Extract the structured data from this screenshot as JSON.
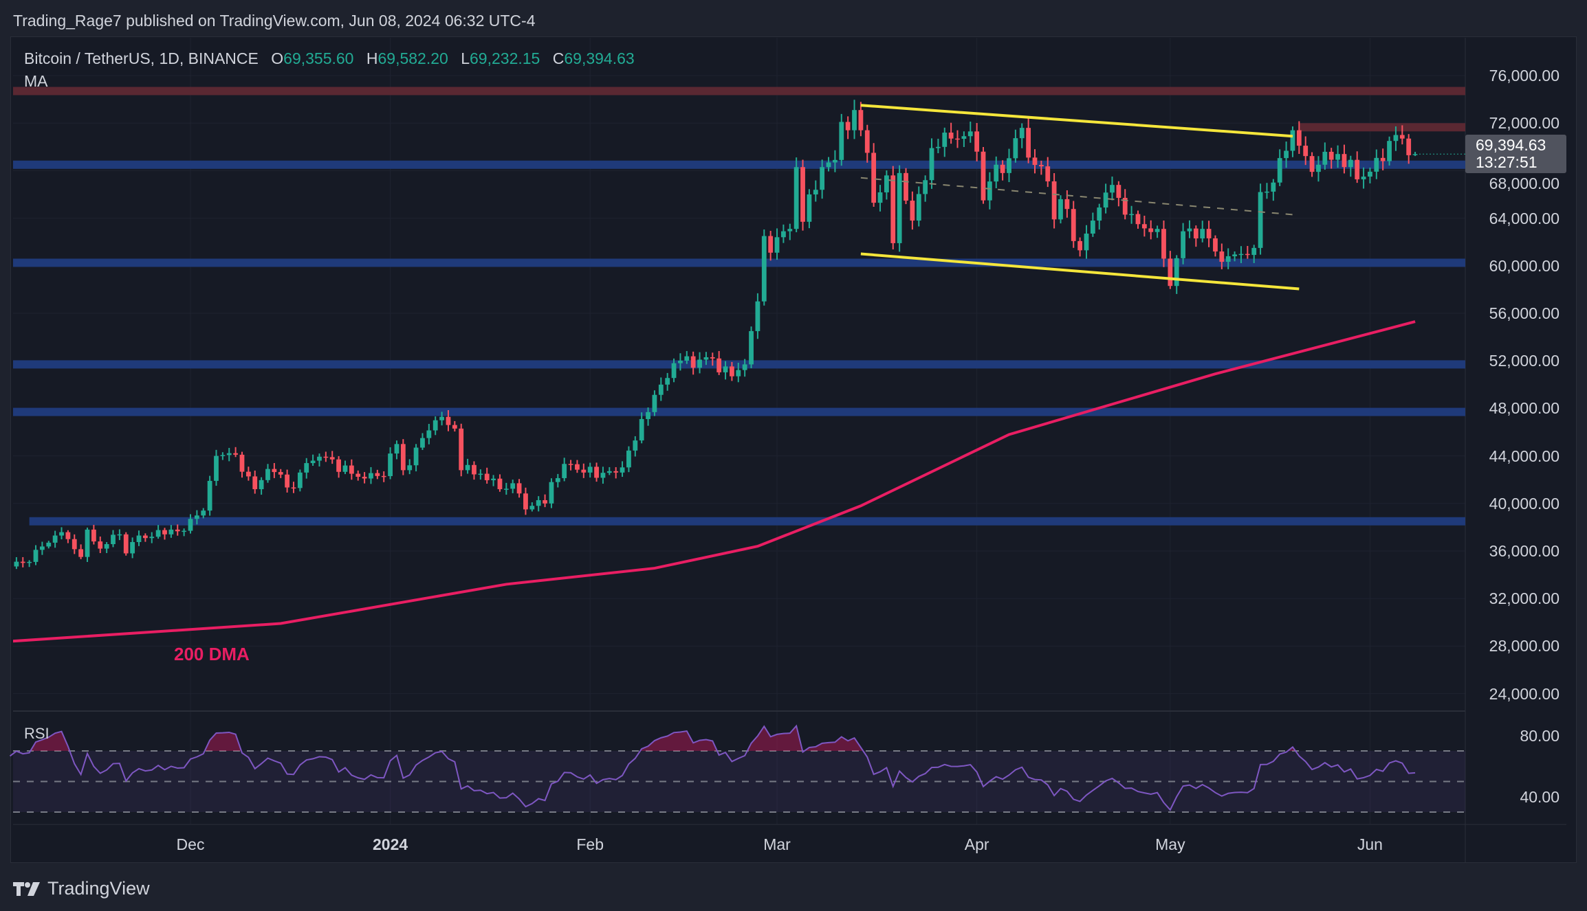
{
  "header": {
    "published": "Trading_Rage7 published on TradingView.com, Jun 08, 2024 06:32 UTC-4",
    "symbol": "Bitcoin / TetherUS, 1D, BINANCE",
    "o_label": "O",
    "o": "69,355.60",
    "h_label": "H",
    "h": "69,582.20",
    "l_label": "L",
    "l": "69,232.15",
    "c_label": "C",
    "c": "69,394.63",
    "ma_label": "MA"
  },
  "last_price": {
    "price": "69,394.63",
    "countdown": "13:27:51"
  },
  "rsi_label": "RSI",
  "dma_label": "200 DMA",
  "brand": "TradingView",
  "colors": {
    "up": "#22ab94",
    "down": "#f7525f",
    "bg": "#161a25",
    "zone_blue": "#1f3a7a",
    "zone_red": "#5a2832",
    "trend": "#f5e63b",
    "ma": "#e91e63",
    "rsi": "#7e57c2"
  },
  "chart_data": {
    "type": "candlestick",
    "title": "Bitcoin / TetherUS, 1D, BINANCE",
    "x_range": [
      "2023-11-03",
      "2024-06-08"
    ],
    "ylim": [
      22000,
      78000
    ],
    "price_ticks": [
      "76,000.00",
      "72,000.00",
      "68,000.00",
      "64,000.00",
      "60,000.00",
      "56,000.00",
      "52,000.00",
      "48,000.00",
      "44,000.00",
      "40,000.00",
      "36,000.00",
      "32,000.00",
      "28,000.00",
      "24,000.00"
    ],
    "price_tick_values": [
      76000,
      72000,
      68000,
      64000,
      60000,
      56000,
      52000,
      48000,
      44000,
      40000,
      36000,
      32000,
      28000,
      24000
    ],
    "time_ticks": [
      {
        "label": "Dec",
        "date": "2023-12-01",
        "bold": false
      },
      {
        "label": "2024",
        "date": "2024-01-01",
        "bold": true
      },
      {
        "label": "Feb",
        "date": "2024-02-01",
        "bold": false
      },
      {
        "label": "Mar",
        "date": "2024-03-01",
        "bold": false
      },
      {
        "label": "Apr",
        "date": "2024-04-01",
        "bold": false
      },
      {
        "label": "May",
        "date": "2024-05-01",
        "bold": false
      },
      {
        "label": "Jun",
        "date": "2024-06-01",
        "bold": false
      }
    ],
    "last_candle": {
      "date": "2024-06-08",
      "open": 69355.6,
      "high": 69582.2,
      "low": 69232.15,
      "close": 69394.63
    },
    "close_keypoints": [
      [
        "2023-11-03",
        34700
      ],
      [
        "2023-11-05",
        35000
      ],
      [
        "2023-11-09",
        36700
      ],
      [
        "2023-11-10",
        37300
      ],
      [
        "2023-11-12",
        37000
      ],
      [
        "2023-11-14",
        35500
      ],
      [
        "2023-11-15",
        37800
      ],
      [
        "2023-11-17",
        36200
      ],
      [
        "2023-11-20",
        37400
      ],
      [
        "2023-11-21",
        35800
      ],
      [
        "2023-11-23",
        37300
      ],
      [
        "2023-11-27",
        37400
      ],
      [
        "2023-11-28",
        37800
      ],
      [
        "2023-11-30",
        37700
      ],
      [
        "2023-12-01",
        38700
      ],
      [
        "2023-12-03",
        39400
      ],
      [
        "2023-12-04",
        41900
      ],
      [
        "2023-12-05",
        44000
      ],
      [
        "2023-12-08",
        44100
      ],
      [
        "2023-12-11",
        41200
      ],
      [
        "2023-12-13",
        42900
      ],
      [
        "2023-12-17",
        41300
      ],
      [
        "2023-12-18",
        42600
      ],
      [
        "2023-12-20",
        43600
      ],
      [
        "2023-12-22",
        43900
      ],
      [
        "2023-12-26",
        42500
      ],
      [
        "2023-12-28",
        42100
      ],
      [
        "2023-12-31",
        42300
      ],
      [
        "2024-01-01",
        44200
      ],
      [
        "2024-01-02",
        45000
      ],
      [
        "2024-01-03",
        42800
      ],
      [
        "2024-01-08",
        47000
      ],
      [
        "2024-01-10",
        46600
      ],
      [
        "2024-01-11",
        46300
      ],
      [
        "2024-01-12",
        42800
      ],
      [
        "2024-01-15",
        42500
      ],
      [
        "2024-01-18",
        41200
      ],
      [
        "2024-01-20",
        41700
      ],
      [
        "2024-01-22",
        39500
      ],
      [
        "2024-01-23",
        39800
      ],
      [
        "2024-01-25",
        40000
      ],
      [
        "2024-01-26",
        41800
      ],
      [
        "2024-01-29",
        43300
      ],
      [
        "2024-01-31",
        42600
      ],
      [
        "2024-02-05",
        42600
      ],
      [
        "2024-02-08",
        45300
      ],
      [
        "2024-02-09",
        47100
      ],
      [
        "2024-02-12",
        50000
      ],
      [
        "2024-02-14",
        51800
      ],
      [
        "2024-02-18",
        52100
      ],
      [
        "2024-02-20",
        52200
      ],
      [
        "2024-02-23",
        50700
      ],
      [
        "2024-02-25",
        51700
      ],
      [
        "2024-02-26",
        54500
      ],
      [
        "2024-02-27",
        57000
      ],
      [
        "2024-02-28",
        62500
      ],
      [
        "2024-02-29",
        61100
      ],
      [
        "2024-03-01",
        62400
      ],
      [
        "2024-03-03",
        63100
      ],
      [
        "2024-03-04",
        68300
      ],
      [
        "2024-03-05",
        63700
      ],
      [
        "2024-03-06",
        66000
      ],
      [
        "2024-03-08",
        68300
      ],
      [
        "2024-03-10",
        68900
      ],
      [
        "2024-03-11",
        72100
      ],
      [
        "2024-03-12",
        71400
      ],
      [
        "2024-03-13",
        73100
      ],
      [
        "2024-03-14",
        71400
      ],
      [
        "2024-03-15",
        69500
      ],
      [
        "2024-03-16",
        65300
      ],
      [
        "2024-03-18",
        67600
      ],
      [
        "2024-03-19",
        61900
      ],
      [
        "2024-03-20",
        67800
      ],
      [
        "2024-03-22",
        63800
      ],
      [
        "2024-03-24",
        67200
      ],
      [
        "2024-03-25",
        69900
      ],
      [
        "2024-03-26",
        70000
      ],
      [
        "2024-03-28",
        70700
      ],
      [
        "2024-03-31",
        71300
      ],
      [
        "2024-04-01",
        69600
      ],
      [
        "2024-04-02",
        65500
      ],
      [
        "2024-04-04",
        68500
      ],
      [
        "2024-04-05",
        67800
      ],
      [
        "2024-04-08",
        71600
      ],
      [
        "2024-04-09",
        69100
      ],
      [
        "2024-04-12",
        67100
      ],
      [
        "2024-04-13",
        63900
      ],
      [
        "2024-04-14",
        65600
      ],
      [
        "2024-04-17",
        61300
      ],
      [
        "2024-04-19",
        63800
      ],
      [
        "2024-04-20",
        64900
      ],
      [
        "2024-04-22",
        66800
      ],
      [
        "2024-04-24",
        64300
      ],
      [
        "2024-04-26",
        63500
      ],
      [
        "2024-04-29",
        63100
      ],
      [
        "2024-04-30",
        60600
      ],
      [
        "2024-05-01",
        58300
      ],
      [
        "2024-05-03",
        62900
      ],
      [
        "2024-05-06",
        63100
      ],
      [
        "2024-05-08",
        61200
      ],
      [
        "2024-05-10",
        60800
      ],
      [
        "2024-05-14",
        61500
      ],
      [
        "2024-05-15",
        66200
      ],
      [
        "2024-05-17",
        67000
      ],
      [
        "2024-05-20",
        71400
      ],
      [
        "2024-05-21",
        70100
      ],
      [
        "2024-05-23",
        67900
      ],
      [
        "2024-05-24",
        68500
      ],
      [
        "2024-05-27",
        69400
      ],
      [
        "2024-05-28",
        68300
      ],
      [
        "2024-05-31",
        67500
      ],
      [
        "2024-06-03",
        68800
      ],
      [
        "2024-06-04",
        70500
      ],
      [
        "2024-06-05",
        71000
      ],
      [
        "2024-06-06",
        70700
      ],
      [
        "2024-06-07",
        69300
      ],
      [
        "2024-06-08",
        69394.63
      ]
    ],
    "ma200_keypoints": [
      [
        "2023-11-03",
        28400
      ],
      [
        "2023-12-15",
        29900
      ],
      [
        "2024-01-19",
        33200
      ],
      [
        "2024-02-11",
        34550
      ],
      [
        "2024-02-27",
        36400
      ],
      [
        "2024-03-14",
        39800
      ],
      [
        "2024-04-06",
        45800
      ],
      [
        "2024-05-08",
        50900
      ],
      [
        "2024-06-08",
        55300
      ]
    ],
    "zones": [
      {
        "kind": "resistance",
        "color": "red",
        "price": 74700,
        "from": "2023-11-03"
      },
      {
        "kind": "resistance",
        "color": "red",
        "price": 71650,
        "from": "2024-05-21"
      },
      {
        "kind": "support",
        "color": "blue",
        "price": 68500,
        "from": "2023-11-03"
      },
      {
        "kind": "support",
        "color": "blue",
        "price": 60250,
        "from": "2023-11-03"
      },
      {
        "kind": "support",
        "color": "blue",
        "price": 51700,
        "from": "2023-11-03"
      },
      {
        "kind": "support",
        "color": "blue",
        "price": 47700,
        "from": "2023-11-03"
      },
      {
        "kind": "support",
        "color": "blue",
        "price": 38500,
        "from": "2023-11-06"
      }
    ],
    "trendlines": [
      {
        "name": "channel-upper",
        "from": [
          "2024-03-14",
          73500
        ],
        "to": [
          "2024-05-20",
          70900
        ],
        "dashed": false
      },
      {
        "name": "channel-lower",
        "from": [
          "2024-03-14",
          61000
        ],
        "to": [
          "2024-05-21",
          58050
        ],
        "dashed": false
      },
      {
        "name": "channel-mid",
        "from": [
          "2024-03-14",
          67400
        ],
        "to": [
          "2024-05-20",
          64300
        ],
        "dashed": true
      }
    ],
    "rsi": {
      "period": 14,
      "levels": [
        70,
        50,
        30
      ],
      "tick_labels": [
        "80.00",
        "40.00"
      ],
      "tick_values": [
        80,
        40
      ]
    }
  }
}
